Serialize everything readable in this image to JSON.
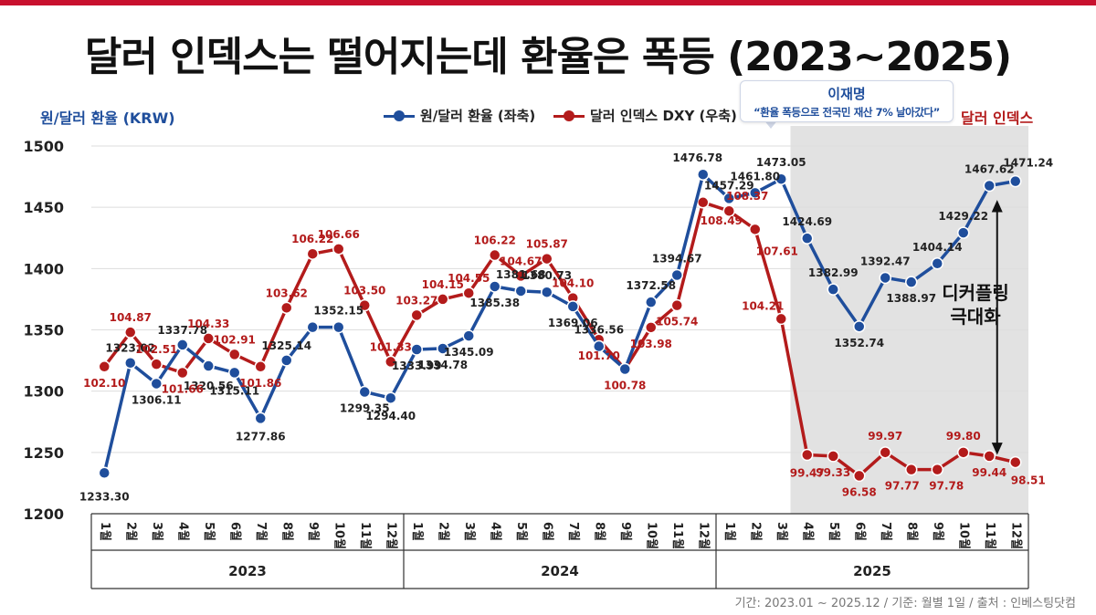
{
  "title": "달러 인덱스는 떨어지는데 환율은 폭등 (2023~2025)",
  "source": "기간: 2023.01 ~ 2025.12 / 기준: 월별 1일 / 출처 : 인베스팅닷컴",
  "colors": {
    "krw": "#1f4e9c",
    "dxy": "#b31b1b",
    "shade": "#e2e2e2",
    "accent": "#c8102e"
  },
  "legend": {
    "krw": "원/달러 환율 (좌축)",
    "dxy": "달러 인덱스 DXY (우축)"
  },
  "callout": {
    "name": "이재명",
    "quote": "“환율 폭등으로 전국민 재산 7% 날아갔다”"
  },
  "annotation": "디커플링\n극대화",
  "chart_data": {
    "type": "line",
    "ylabel": "원/달러 환율 (KRW)",
    "ylabel_right": "달러 인덱스",
    "ylim": [
      1200,
      1500
    ],
    "yticks": [
      1200,
      1250,
      1300,
      1350,
      1400,
      1450,
      1500
    ],
    "months": [
      "1월",
      "2월",
      "3월",
      "4월",
      "5월",
      "6월",
      "7월",
      "8월",
      "9월",
      "10월",
      "11월",
      "12월",
      "1월",
      "2월",
      "3월",
      "4월",
      "5월",
      "6월",
      "7월",
      "8월",
      "9월",
      "10월",
      "11월",
      "12월",
      "1월",
      "2월",
      "3월",
      "4월",
      "5월",
      "6월",
      "7월",
      "8월",
      "9월",
      "10월",
      "11월",
      "12월"
    ],
    "years": [
      "2023",
      "2024",
      "2025"
    ],
    "shaded_year": "2025 (4월~12월)",
    "series": [
      {
        "name": "원/달러 환율 (좌축)",
        "axis": "left",
        "values": [
          1233.3,
          1323.02,
          1306.11,
          1337.78,
          1320.56,
          1315.11,
          1277.86,
          1325.14,
          1352.15,
          1352.15,
          1299.35,
          1294.4,
          1333.99,
          1334.78,
          1345.09,
          1385.38,
          1381.68,
          1380.73,
          1369.06,
          1336.56,
          1318.0,
          1372.58,
          1394.67,
          1476.78,
          1457.29,
          1461.8,
          1473.05,
          1424.69,
          1382.99,
          1352.74,
          1392.47,
          1388.97,
          1404.14,
          1429.22,
          1467.62,
          1471.24
        ],
        "labels": [
          "1233.30",
          "1323.02",
          "1306.11",
          "1337.78",
          "1320.56",
          "1315.11",
          "1277.86",
          "1325.14",
          "",
          "1352.15",
          "1299.35",
          "1294.40",
          "1333.99",
          "1334.78",
          "1345.09",
          "1385.38",
          "1381.68",
          "1380.73",
          "1369.06",
          "1336.56",
          "",
          "1372.58",
          "1394.67",
          "1476.78",
          "1457.29",
          "1461.80",
          "1473.05",
          "1424.69",
          "1382.99",
          "1352.74",
          "1392.47",
          "1388.97",
          "1404.14",
          "1429.22",
          "1467.62",
          "1471.24"
        ]
      },
      {
        "name": "달러 인덱스 DXY (우축)",
        "axis": "right",
        "values": [
          102.1,
          104.87,
          102.51,
          101.66,
          104.33,
          102.91,
          101.86,
          103.62,
          106.22,
          106.66,
          103.5,
          101.33,
          103.27,
          104.15,
          104.55,
          106.22,
          104.67,
          105.87,
          104.1,
          101.7,
          100.78,
          103.98,
          105.74,
          108.49,
          108.37,
          107.61,
          104.21,
          99.47,
          99.33,
          96.58,
          99.97,
          97.77,
          97.78,
          99.8,
          99.44,
          98.51
        ],
        "labels": [
          "102.10",
          "104.87",
          "102.51",
          "101.66",
          "104.33",
          "102.91",
          "101.86",
          "103.62",
          "106.22",
          "106.66",
          "103.50",
          "101.33",
          "103.27",
          "104.15",
          "104.55",
          "106.22",
          "104.67",
          "105.87",
          "104.10",
          "101.70",
          "100.78",
          "103.98",
          "105.74",
          "108.49",
          "108.37",
          "107.61",
          "104.21",
          "99.47",
          "99.33",
          "96.58",
          "99.97",
          "97.77",
          "97.78",
          "99.80",
          "99.44",
          "98.51"
        ],
        "plot_on_left_scale": [
          1320,
          1348,
          1322,
          1315,
          1343,
          1330,
          1320,
          1368,
          1412,
          1416,
          1370,
          1324,
          1362,
          1375,
          1380,
          1411,
          1394,
          1408,
          1376,
          1342,
          1318,
          1352,
          1370,
          1454,
          1447,
          1432,
          1359,
          1248,
          1247,
          1231,
          1250,
          1236,
          1236,
          1250,
          1247,
          1242
        ]
      }
    ]
  }
}
